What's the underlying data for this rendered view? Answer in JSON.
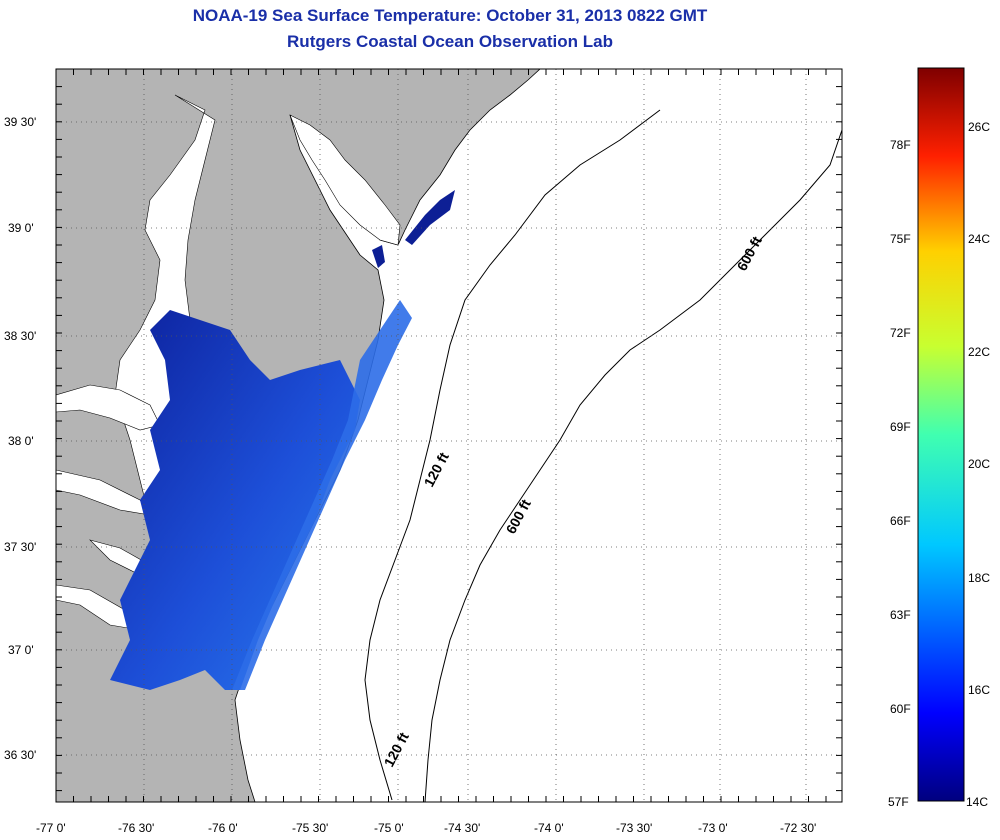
{
  "header": {
    "title": "NOAA-19 Sea Surface Temperature:  October 31, 2013 0822 GMT",
    "subtitle": "Rutgers Coastal Ocean Observation Lab"
  },
  "map": {
    "lat_labels": [
      "39 30'",
      "39 0'",
      "38 30'",
      "38 0'",
      "37 30'",
      "37 0'",
      "36 30'"
    ],
    "lon_labels": [
      "-77 0'",
      "-76 30'",
      "-76 0'",
      "-75 30'",
      "-75 0'",
      "-74 30'",
      "-74 0'",
      "-73 30'",
      "-73 0'",
      "-72 30'"
    ],
    "contour_labels": {
      "shelf_120_north": "120 ft",
      "shelf_120_south": "120 ft",
      "slope_600_north": "600 ft",
      "slope_600_south": "600 ft"
    },
    "colors": {
      "land": "#b4b4b4",
      "no_data_water": "#ffffff",
      "sst_cold": "#0a1e8c",
      "sst_mid": "#1e5fe6"
    }
  },
  "colorbar": {
    "min_c": 14,
    "max_c": 28,
    "celsius_labels": [
      "26C",
      "24C",
      "22C",
      "20C",
      "18C",
      "16C",
      "14C"
    ],
    "fahrenheit_labels": [
      "78F",
      "75F",
      "72F",
      "69F",
      "66F",
      "63F",
      "60F",
      "57F"
    ],
    "colormap": "jet"
  }
}
